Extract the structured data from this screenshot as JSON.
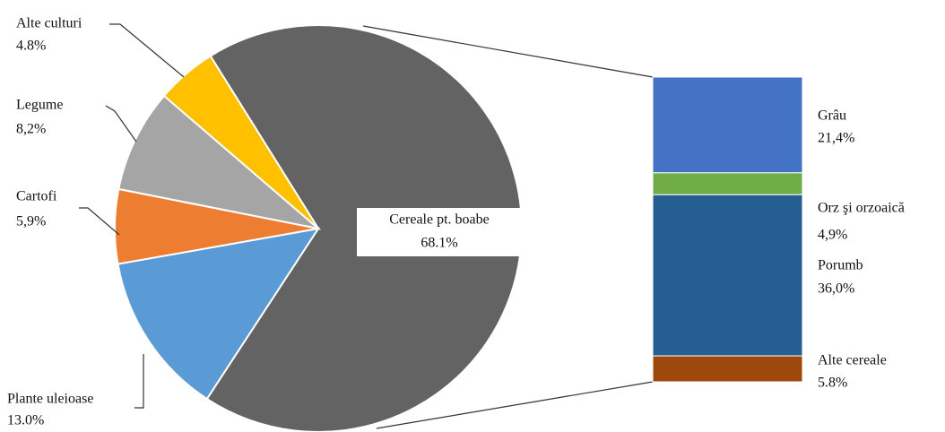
{
  "chart_data": [
    {
      "type": "pie",
      "categories": [
        "Cereale pt. boabe",
        "Plante uleioase",
        "Cartofi",
        "Legume",
        "Alte culturi"
      ],
      "values": [
        68.1,
        13.0,
        5.9,
        8.2,
        4.8
      ],
      "value_labels": [
        "68.1%",
        "13.0%",
        "5,9%",
        "8,2%",
        "4.8%"
      ],
      "colors": [
        "#636363",
        "#5b9bd5",
        "#ed7d31",
        "#a5a5a5",
        "#ffc000"
      ]
    },
    {
      "type": "stacked-bar",
      "categories": [
        "Grâu",
        "Orz şi orzoaică",
        "Porumb",
        "Alte cereale"
      ],
      "values": [
        21.4,
        4.9,
        36.0,
        5.8
      ],
      "value_labels": [
        "21,4%",
        "4,9%",
        "36,0%",
        "5.8%"
      ],
      "colors": [
        "#4472c4",
        "#70ad47",
        "#255e91",
        "#9e480e"
      ]
    }
  ]
}
